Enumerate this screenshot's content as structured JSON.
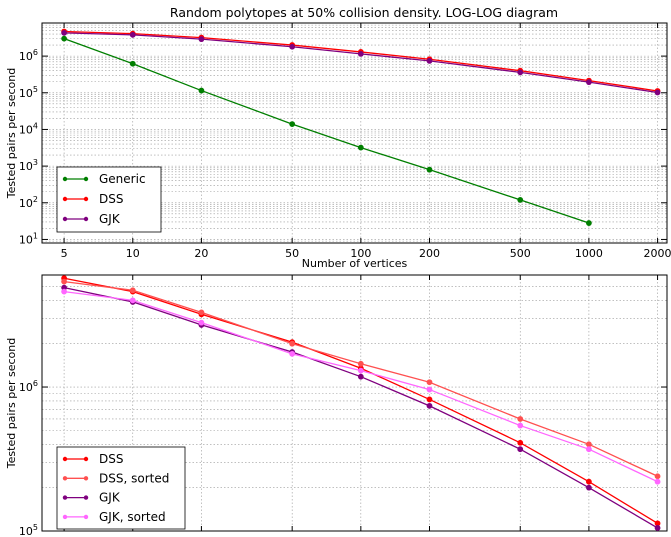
{
  "chart_data": [
    {
      "type": "line",
      "title": "Random polytopes at 50% collision density. LOG-LOG diagram",
      "xlabel": "Number of vertices",
      "ylabel": "Tested pairs per second",
      "xscale": "log",
      "yscale": "log",
      "xlim": [
        4,
        2200
      ],
      "ylim": [
        8,
        8000000
      ],
      "xticks": [
        5,
        10,
        20,
        50,
        100,
        200,
        500,
        1000,
        2000
      ],
      "xtick_labels": [
        "5",
        "10",
        "20",
        "50",
        "100",
        "200",
        "500",
        "1000",
        "2000"
      ],
      "yticks": [
        10,
        100,
        1000,
        10000,
        100000,
        1000000
      ],
      "ytick_labels": [
        [
          "10",
          "1"
        ],
        [
          "10",
          "2"
        ],
        [
          "10",
          "3"
        ],
        [
          "10",
          "4"
        ],
        [
          "10",
          "5"
        ],
        [
          "10",
          "6"
        ]
      ],
      "grid": true,
      "legend_position": "lower-left",
      "x": [
        5,
        10,
        20,
        50,
        100,
        200,
        500,
        1000,
        2000
      ],
      "series": [
        {
          "name": "Generic",
          "color": "#007f00",
          "x": [
            5,
            10,
            20,
            50,
            100,
            200,
            500,
            1000
          ],
          "values": [
            3000000,
            620000,
            115000,
            14000,
            3200,
            800,
            120,
            28
          ]
        },
        {
          "name": "DSS",
          "color": "#ff0000",
          "values": [
            4700000,
            4100000,
            3200000,
            2000000,
            1300000,
            820000,
            400000,
            215000,
            112000
          ]
        },
        {
          "name": "GJK",
          "color": "#7f007f",
          "values": [
            4300000,
            3800000,
            2900000,
            1800000,
            1150000,
            740000,
            360000,
            195000,
            102000
          ]
        }
      ]
    },
    {
      "type": "line",
      "title": "",
      "xlabel": "",
      "ylabel": "Tested pairs per second",
      "xscale": "log",
      "yscale": "log",
      "xlim": [
        4,
        2200
      ],
      "ylim": [
        100000,
        6000000
      ],
      "xticks": [
        5,
        10,
        20,
        50,
        100,
        200,
        500,
        1000,
        2000
      ],
      "yticks": [
        100000,
        1000000
      ],
      "ytick_labels": [
        [
          "10",
          "5"
        ],
        [
          "10",
          "6"
        ]
      ],
      "grid": true,
      "legend_position": "lower-left",
      "x": [
        5,
        10,
        20,
        50,
        100,
        200,
        500,
        1000,
        2000
      ],
      "series": [
        {
          "name": "DSS",
          "color": "#ff0000",
          "values": [
            5700000,
            4600000,
            3200000,
            2050000,
            1350000,
            820000,
            410000,
            220000,
            113000
          ]
        },
        {
          "name": "DSS, sorted",
          "color": "#ff5050",
          "values": [
            5400000,
            4700000,
            3300000,
            2000000,
            1450000,
            1080000,
            600000,
            400000,
            240000
          ]
        },
        {
          "name": "GJK",
          "color": "#7f007f",
          "values": [
            4900000,
            3900000,
            2700000,
            1750000,
            1180000,
            740000,
            370000,
            200000,
            105000
          ]
        },
        {
          "name": "GJK, sorted",
          "color": "#ff66ff",
          "values": [
            4600000,
            4000000,
            2800000,
            1700000,
            1300000,
            960000,
            540000,
            370000,
            220000
          ]
        }
      ]
    }
  ]
}
